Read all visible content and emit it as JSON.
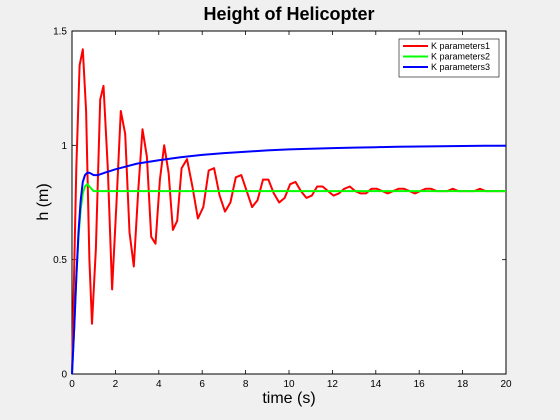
{
  "chart_data": {
    "type": "line",
    "title": "Height of Helicopter",
    "xlabel": "time (s)",
    "ylabel": "h (m)",
    "xlim": [
      0,
      20
    ],
    "ylim": [
      0,
      1.5
    ],
    "xticks": [
      0,
      2,
      4,
      6,
      8,
      10,
      12,
      14,
      16,
      18,
      20
    ],
    "yticks": [
      0,
      0.5,
      1,
      1.5
    ],
    "xtick_labels": [
      "0",
      "2",
      "4",
      "6",
      "8",
      "10",
      "12",
      "14",
      "16",
      "18",
      "20"
    ],
    "ytick_labels": [
      "0",
      "0.5",
      "1",
      "1.5"
    ],
    "grid": false,
    "legend_position": "top-right",
    "series": [
      {
        "name": "K parameters1",
        "color": "#ff0000",
        "x": [
          0,
          0.2,
          0.35,
          0.5,
          0.65,
          0.8,
          0.92,
          1.1,
          1.3,
          1.45,
          1.65,
          1.85,
          2.05,
          2.25,
          2.45,
          2.65,
          2.85,
          3.05,
          3.25,
          3.45,
          3.65,
          3.85,
          4.05,
          4.25,
          4.45,
          4.65,
          4.85,
          5.05,
          5.3,
          5.55,
          5.8,
          6.05,
          6.3,
          6.55,
          6.8,
          7.05,
          7.3,
          7.55,
          7.8,
          8.05,
          8.3,
          8.55,
          8.8,
          9.05,
          9.3,
          9.55,
          9.8,
          10.05,
          10.3,
          10.55,
          10.8,
          11.05,
          11.3,
          11.55,
          11.8,
          12.05,
          12.3,
          12.55,
          12.8,
          13.05,
          13.3,
          13.55,
          13.8,
          14.05,
          14.3,
          14.55,
          14.8,
          15.05,
          15.3,
          15.55,
          15.8,
          16.05,
          16.3,
          16.55,
          16.8,
          17.05,
          17.3,
          17.55,
          17.8,
          18.05,
          18.3,
          18.55,
          18.8,
          19.05,
          19.3,
          19.55,
          19.8,
          20
        ],
        "y": [
          0,
          0.9,
          1.35,
          1.42,
          1.15,
          0.5,
          0.22,
          0.55,
          1.2,
          1.26,
          0.9,
          0.37,
          0.75,
          1.15,
          1.05,
          0.62,
          0.47,
          0.8,
          1.07,
          0.95,
          0.6,
          0.57,
          0.85,
          1.0,
          0.88,
          0.63,
          0.67,
          0.9,
          0.94,
          0.82,
          0.68,
          0.73,
          0.89,
          0.9,
          0.78,
          0.71,
          0.75,
          0.86,
          0.87,
          0.8,
          0.73,
          0.76,
          0.85,
          0.85,
          0.79,
          0.75,
          0.77,
          0.83,
          0.84,
          0.8,
          0.77,
          0.78,
          0.82,
          0.82,
          0.8,
          0.78,
          0.79,
          0.81,
          0.82,
          0.8,
          0.79,
          0.79,
          0.81,
          0.81,
          0.8,
          0.79,
          0.8,
          0.81,
          0.81,
          0.8,
          0.79,
          0.8,
          0.81,
          0.81,
          0.8,
          0.8,
          0.8,
          0.81,
          0.8,
          0.8,
          0.8,
          0.8,
          0.81,
          0.8,
          0.8,
          0.8,
          0.8,
          0.8
        ]
      },
      {
        "name": "K parameters2",
        "color": "#00ff00",
        "x": [
          0,
          0.1,
          0.2,
          0.3,
          0.4,
          0.5,
          0.6,
          0.7,
          0.8,
          0.9,
          1.0,
          1.2,
          1.5,
          2,
          3,
          4,
          5,
          6,
          7,
          8,
          9,
          10,
          11,
          12,
          13,
          14,
          15,
          16,
          17,
          18,
          19,
          20
        ],
        "y": [
          0,
          0.2,
          0.42,
          0.6,
          0.72,
          0.79,
          0.82,
          0.83,
          0.82,
          0.81,
          0.8,
          0.8,
          0.8,
          0.8,
          0.8,
          0.8,
          0.8,
          0.8,
          0.8,
          0.8,
          0.8,
          0.8,
          0.8,
          0.8,
          0.8,
          0.8,
          0.8,
          0.8,
          0.8,
          0.8,
          0.8,
          0.8
        ]
      },
      {
        "name": "K parameters3",
        "color": "#0000ff",
        "x": [
          0,
          0.1,
          0.2,
          0.3,
          0.4,
          0.5,
          0.6,
          0.7,
          0.8,
          0.9,
          1.0,
          1.2,
          1.5,
          2,
          3,
          4,
          5,
          6,
          7,
          8,
          9,
          10,
          11,
          12,
          13,
          14,
          15,
          16,
          17,
          18,
          19,
          20
        ],
        "y": [
          0,
          0.2,
          0.42,
          0.62,
          0.76,
          0.84,
          0.87,
          0.88,
          0.88,
          0.875,
          0.87,
          0.87,
          0.88,
          0.895,
          0.92,
          0.935,
          0.948,
          0.958,
          0.966,
          0.972,
          0.978,
          0.982,
          0.985,
          0.988,
          0.99,
          0.992,
          0.994,
          0.995,
          0.996,
          0.997,
          0.998,
          0.998
        ]
      }
    ]
  }
}
